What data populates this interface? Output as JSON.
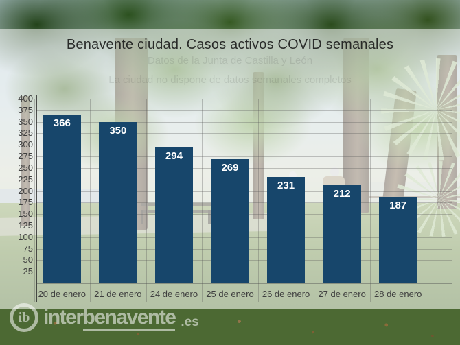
{
  "chart_data": {
    "type": "bar",
    "title": "Benavente ciudad. Casos activos COVID semanales",
    "categories": [
      "20 de enero",
      "21 de enero",
      "24 de enero",
      "25 de enero",
      "26 de enero",
      "27 de enero",
      "28 de enero"
    ],
    "values": [
      366,
      350,
      294,
      269,
      231,
      212,
      187
    ],
    "xlabel": "",
    "ylabel": "",
    "ylim": [
      0,
      400
    ],
    "yticks": [
      25,
      50,
      75,
      100,
      125,
      150,
      175,
      200,
      225,
      250,
      275,
      300,
      325,
      350,
      375,
      400
    ],
    "grid": true,
    "legend": "none",
    "bar_color": "#17466B",
    "value_label_color": "#FFFFFF",
    "axis_label_color": "#3F3F3F",
    "panel_background": "rgba(255,255,255,0.54)"
  },
  "subtitle_faint": {
    "line1": "Datos de la Junta de Castilla y León",
    "line2": "La ciudad no dispone de datos semanales completos"
  },
  "watermark": {
    "logo": "ib",
    "prefix": "inter",
    "highlight": "benavente",
    "tld": ".es"
  }
}
